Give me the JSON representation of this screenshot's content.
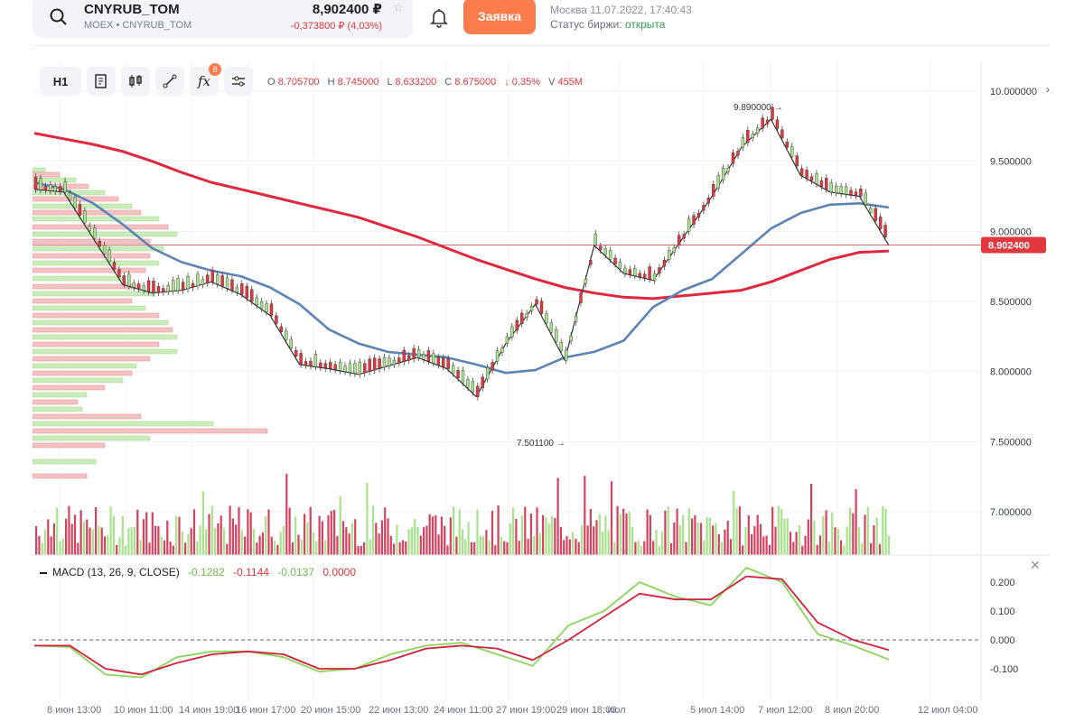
{
  "header": {
    "symbol": "CNYRUB_TOM",
    "sub": "MOEX • CNYRUB_TOM",
    "price": "8,902400 ₽",
    "change": "-0,373800 ₽ (4,03%)",
    "order_button": "Заявка",
    "clock": "Москва 11.07.2022, 17:40:43",
    "exchange_label": "Статус биржи:",
    "exchange_status": "открыта"
  },
  "toolbar": {
    "interval": "H1",
    "indicators_badge": "8"
  },
  "ohlc": {
    "o_label": "O",
    "o": "8.705700",
    "h_label": "H",
    "h": "8.745000",
    "l_label": "L",
    "l": "8.633200",
    "c_label": "C",
    "c": "8.675000",
    "chg": "↓ 0.35%",
    "v_label": "V",
    "v": "455M"
  },
  "macd": {
    "name": "MACD (13, 26, 9, CLOSE)",
    "v1": "-0.1282",
    "v2": "-0.1144",
    "v3": "-0.0137",
    "v4": "0.0000"
  },
  "chart_data": [
    {
      "type": "line",
      "title": "",
      "annotations": [
        "9.890000 →",
        "7.501100 →"
      ],
      "current_price_label": "8.902400",
      "ylim": [
        7.0,
        10.1
      ],
      "y_ticks": [
        "10.000000",
        "9.500000",
        "9.000000",
        "8.500000",
        "8.000000",
        "7.500000",
        "7.000000"
      ],
      "x_ticks": [
        "8 июн 13:00",
        "10 июн 11:00",
        "14 июн 19:00",
        "16 июн 17:00",
        "20 июн 15:00",
        "22 июн 13:00",
        "24 июн 11:00",
        "27 июн 19:00",
        "29 июн 18:00",
        "июл",
        "5 июл 14:00",
        "7 июл 12:00",
        "8 июл 20:00",
        "12 июл 04:00"
      ],
      "series": [
        {
          "name": "",
          "color": "#e0283c",
          "values": [
            9.7,
            9.66,
            9.62,
            9.57,
            9.5,
            9.42,
            9.35,
            9.3,
            9.25,
            9.2,
            9.15,
            9.1,
            9.03,
            8.96,
            8.88,
            8.8,
            8.73,
            8.66,
            8.6,
            8.56,
            8.53,
            8.52,
            8.54,
            8.56,
            8.58,
            8.64,
            8.72,
            8.8,
            8.85,
            8.86
          ]
        },
        {
          "name": "",
          "color": "#5b84b5",
          "values": [
            9.35,
            9.3,
            9.2,
            9.05,
            8.88,
            8.78,
            8.72,
            8.68,
            8.6,
            8.48,
            8.3,
            8.2,
            8.14,
            8.12,
            8.1,
            8.05,
            7.99,
            8.01,
            8.1,
            8.14,
            8.22,
            8.46,
            8.58,
            8.66,
            8.84,
            9.02,
            9.13,
            9.19,
            9.2,
            9.17
          ]
        },
        {
          "name": "",
          "color": "#333333",
          "values": [
            9.3,
            9.28,
            8.95,
            8.62,
            8.56,
            8.58,
            8.64,
            8.55,
            8.4,
            8.05,
            8.02,
            7.98,
            8.04,
            8.1,
            8.02,
            7.82,
            8.2,
            8.48,
            8.08,
            8.9,
            8.7,
            8.65,
            8.95,
            9.25,
            9.6,
            9.8,
            9.4,
            9.28,
            9.25,
            8.9
          ]
        }
      ]
    },
    {
      "type": "line",
      "title": "MACD (13, 26, 9, CLOSE)",
      "ylim": [
        -0.16,
        0.26
      ],
      "y_ticks": [
        "0.200",
        "0.100",
        "0.000",
        "-0.100"
      ],
      "series": [
        {
          "name": "",
          "color": "#8bd65a",
          "values": [
            -0.02,
            -0.025,
            -0.12,
            -0.13,
            -0.06,
            -0.04,
            -0.04,
            -0.06,
            -0.11,
            -0.1,
            -0.05,
            -0.02,
            -0.01,
            -0.05,
            -0.09,
            0.05,
            0.1,
            0.2,
            0.15,
            0.12,
            0.25,
            0.2,
            0.02,
            -0.02,
            -0.068
          ]
        },
        {
          "name": "",
          "color": "#d0213c",
          "values": [
            -0.02,
            -0.02,
            -0.1,
            -0.12,
            -0.08,
            -0.05,
            -0.04,
            -0.05,
            -0.1,
            -0.1,
            -0.07,
            -0.03,
            -0.02,
            -0.03,
            -0.07,
            0.0,
            0.08,
            0.16,
            0.14,
            0.14,
            0.22,
            0.21,
            0.06,
            0.0,
            -0.035
          ]
        }
      ]
    }
  ]
}
